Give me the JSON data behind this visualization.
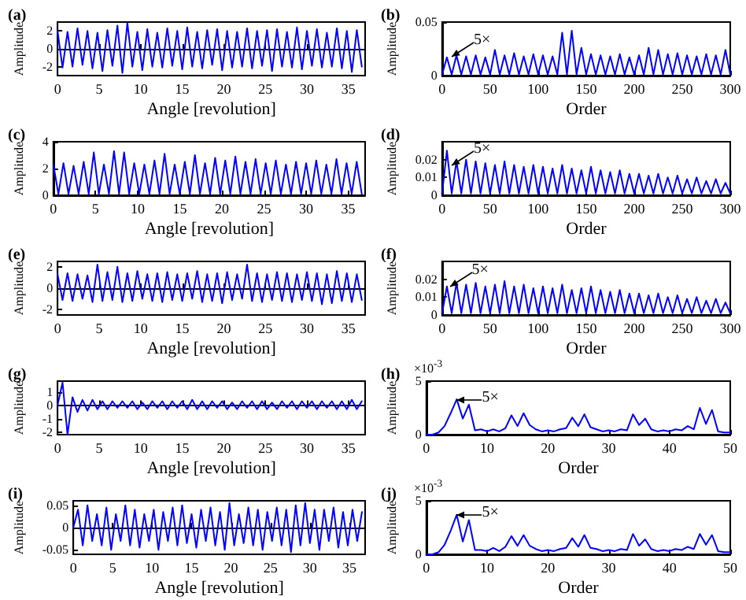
{
  "chart_data": [
    {
      "type": "line",
      "title": "(a)",
      "xlabel": "Angle [revolution]",
      "ylabel": "Amplitude",
      "color": "#0000ff",
      "xlim": [
        0,
        37
      ],
      "xticks": [
        0,
        5,
        10,
        15,
        20,
        25,
        30,
        35
      ],
      "ylim": [
        -3,
        3
      ],
      "yticks": [
        -2,
        0,
        2
      ],
      "x": [
        0,
        0.6,
        1.2,
        1.8,
        2.4,
        3,
        3.6,
        4.2,
        4.8,
        5.4,
        6,
        6.6,
        7.2,
        7.8,
        8.4,
        9,
        9.6,
        10.2,
        10.8,
        11.4,
        12,
        12.6,
        13.2,
        13.8,
        14.4,
        15,
        15.6,
        16.2,
        16.8,
        17.4,
        18,
        18.6,
        19.2,
        19.8,
        20.4,
        21,
        21.6,
        22.2,
        22.8,
        23.4,
        24,
        24.6,
        25.2,
        25.8,
        26.4,
        27,
        27.6,
        28.2,
        28.8,
        29.4,
        30,
        30.6,
        31.2,
        31.8,
        32.4,
        33,
        33.6,
        34.2,
        34.8,
        35.4,
        36,
        36.6
      ],
      "values": [
        2.0,
        -2.1,
        1.9,
        -2.0,
        2.3,
        -1.8,
        2.0,
        -2.2,
        1.8,
        -2.5,
        2.1,
        -1.9,
        2.6,
        -2.7,
        2.9,
        -2.0,
        1.9,
        -2.4,
        2.2,
        -2.0,
        1.8,
        -2.1,
        2.3,
        -1.9,
        2.0,
        -2.3,
        2.4,
        -2.0,
        1.9,
        -2.2,
        2.1,
        -1.8,
        2.2,
        -2.4,
        2.0,
        -2.1,
        1.9,
        -2.0,
        2.3,
        -2.2,
        2.0,
        -1.9,
        2.1,
        -2.5,
        2.2,
        -2.0,
        1.9,
        -2.1,
        2.4,
        -2.3,
        2.0,
        -1.9,
        2.2,
        -2.1,
        1.8,
        -2.0,
        2.3,
        -2.2,
        2.0,
        -2.6,
        2.1,
        -2.0
      ]
    },
    {
      "type": "line",
      "title": "(b)",
      "xlabel": "Order",
      "ylabel": "Amplitude",
      "color": "#0000ff",
      "xlim": [
        0,
        300
      ],
      "xticks": [
        0,
        50,
        100,
        150,
        200,
        250,
        300
      ],
      "ylim": [
        0,
        0.05
      ],
      "yticks": [
        0,
        0.05
      ],
      "annotations": [
        {
          "text": "5×",
          "x": 10,
          "y": 0.017
        }
      ],
      "x": [
        0,
        5,
        10,
        15,
        20,
        25,
        30,
        35,
        40,
        45,
        50,
        55,
        60,
        65,
        70,
        75,
        80,
        85,
        90,
        95,
        100,
        105,
        110,
        115,
        120,
        125,
        130,
        135,
        140,
        145,
        150,
        155,
        160,
        165,
        170,
        175,
        180,
        185,
        190,
        195,
        200,
        205,
        210,
        215,
        220,
        225,
        230,
        235,
        240,
        245,
        250,
        255,
        260,
        265,
        270,
        275,
        280,
        285,
        290,
        295,
        300
      ],
      "values": [
        0.001,
        0.017,
        0.001,
        0.019,
        0.001,
        0.018,
        0.001,
        0.019,
        0.001,
        0.017,
        0.001,
        0.024,
        0.001,
        0.019,
        0.001,
        0.021,
        0.001,
        0.018,
        0.001,
        0.02,
        0.001,
        0.019,
        0.001,
        0.018,
        0.001,
        0.04,
        0.001,
        0.042,
        0.001,
        0.026,
        0.001,
        0.02,
        0.001,
        0.019,
        0.001,
        0.018,
        0.001,
        0.02,
        0.001,
        0.017,
        0.001,
        0.019,
        0.001,
        0.026,
        0.001,
        0.024,
        0.001,
        0.02,
        0.001,
        0.021,
        0.001,
        0.019,
        0.001,
        0.018,
        0.001,
        0.02,
        0.001,
        0.019,
        0.001,
        0.024,
        0.001
      ]
    },
    {
      "type": "line",
      "title": "(c)",
      "xlabel": "Angle [revolution]",
      "ylabel": "Amplitude",
      "color": "#0000ff",
      "xlim": [
        0,
        37
      ],
      "xticks": [
        0,
        5,
        10,
        15,
        20,
        25,
        30,
        35
      ],
      "ylim": [
        0,
        4
      ],
      "yticks": [
        0,
        2,
        4
      ],
      "x": [
        0,
        0.6,
        1.2,
        1.8,
        2.4,
        3,
        3.6,
        4.2,
        4.8,
        5.4,
        6,
        6.6,
        7.2,
        7.8,
        8.4,
        9,
        9.6,
        10.2,
        10.8,
        11.4,
        12,
        12.6,
        13.2,
        13.8,
        14.4,
        15,
        15.6,
        16.2,
        16.8,
        17.4,
        18,
        18.6,
        19.2,
        19.8,
        20.4,
        21,
        21.6,
        22.2,
        22.8,
        23.4,
        24,
        24.6,
        25.2,
        25.8,
        26.4,
        27,
        27.6,
        28.2,
        28.8,
        29.4,
        30,
        30.6,
        31.2,
        31.8,
        32.4,
        33,
        33.6,
        34.2,
        34.8,
        35.4,
        36,
        36.6
      ],
      "values": [
        2.3,
        0.1,
        2.4,
        0.1,
        2.2,
        0.1,
        2.5,
        0.1,
        3.2,
        0.1,
        2.3,
        0.1,
        3.3,
        0.1,
        3.2,
        0.1,
        2.4,
        0.1,
        2.3,
        0.1,
        2.6,
        0.1,
        3.1,
        0.1,
        2.3,
        0.1,
        2.5,
        0.1,
        3.0,
        0.1,
        2.4,
        0.1,
        2.8,
        0.1,
        2.6,
        0.1,
        2.9,
        0.1,
        2.5,
        0.1,
        2.7,
        0.1,
        2.4,
        0.1,
        2.6,
        0.1,
        2.3,
        0.1,
        2.5,
        0.1,
        2.4,
        0.1,
        2.6,
        0.1,
        2.3,
        0.1,
        2.7,
        0.1,
        2.4,
        0.1,
        2.5,
        0.1
      ]
    },
    {
      "type": "line",
      "title": "(d)",
      "xlabel": "Order",
      "ylabel": "Amplitude",
      "color": "#0000ff",
      "xlim": [
        0,
        300
      ],
      "xticks": [
        0,
        50,
        100,
        150,
        200,
        250,
        300
      ],
      "ylim": [
        0,
        0.03
      ],
      "yticks": [
        0,
        0.01,
        0.02
      ],
      "annotations": [
        {
          "text": "5×",
          "x": 10,
          "y": 0.017
        }
      ],
      "x": [
        0,
        5,
        10,
        15,
        20,
        25,
        30,
        35,
        40,
        45,
        50,
        55,
        60,
        65,
        70,
        75,
        80,
        85,
        90,
        95,
        100,
        105,
        110,
        115,
        120,
        125,
        130,
        135,
        140,
        145,
        150,
        155,
        160,
        165,
        170,
        175,
        180,
        185,
        190,
        195,
        200,
        205,
        210,
        215,
        220,
        225,
        230,
        235,
        240,
        245,
        250,
        255,
        260,
        265,
        270,
        275,
        280,
        285,
        290,
        295,
        300
      ],
      "values": [
        0.001,
        0.025,
        0.001,
        0.019,
        0.001,
        0.02,
        0.001,
        0.019,
        0.001,
        0.018,
        0.001,
        0.017,
        0.001,
        0.019,
        0.001,
        0.017,
        0.001,
        0.016,
        0.001,
        0.017,
        0.001,
        0.016,
        0.001,
        0.015,
        0.001,
        0.017,
        0.001,
        0.015,
        0.001,
        0.014,
        0.001,
        0.016,
        0.001,
        0.014,
        0.001,
        0.013,
        0.001,
        0.014,
        0.001,
        0.012,
        0.001,
        0.012,
        0.001,
        0.011,
        0.001,
        0.012,
        0.001,
        0.01,
        0.001,
        0.011,
        0.001,
        0.009,
        0.001,
        0.01,
        0.001,
        0.008,
        0.001,
        0.009,
        0.001,
        0.007,
        0.001
      ]
    },
    {
      "type": "line",
      "title": "(e)",
      "xlabel": "Angle [revolution]",
      "ylabel": "Amplitude",
      "color": "#0000ff",
      "xlim": [
        0,
        37
      ],
      "xticks": [
        0,
        5,
        10,
        15,
        20,
        25,
        30,
        35
      ],
      "ylim": [
        -2.5,
        2.5
      ],
      "yticks": [
        -2,
        0,
        2
      ],
      "x": [
        0,
        0.6,
        1.2,
        1.8,
        2.4,
        3,
        3.6,
        4.2,
        4.8,
        5.4,
        6,
        6.6,
        7.2,
        7.8,
        8.4,
        9,
        9.6,
        10.2,
        10.8,
        11.4,
        12,
        12.6,
        13.2,
        13.8,
        14.4,
        15,
        15.6,
        16.2,
        16.8,
        17.4,
        18,
        18.6,
        19.2,
        19.8,
        20.4,
        21,
        21.6,
        22.2,
        22.8,
        23.4,
        24,
        24.6,
        25.2,
        25.8,
        26.4,
        27,
        27.6,
        28.2,
        28.8,
        29.4,
        30,
        30.6,
        31.2,
        31.8,
        32.4,
        33,
        33.6,
        34.2,
        34.8,
        35.4,
        36,
        36.6
      ],
      "values": [
        1.3,
        -1.1,
        1.4,
        -1.2,
        1.3,
        -1.0,
        1.2,
        -1.3,
        2.2,
        -1.2,
        1.5,
        -1.1,
        2.0,
        -1.3,
        1.4,
        -1.2,
        1.6,
        -1.0,
        1.3,
        -1.2,
        1.4,
        -1.3,
        1.5,
        -1.1,
        1.3,
        -1.2,
        1.4,
        -1.0,
        1.6,
        -1.3,
        1.3,
        -1.2,
        1.4,
        -1.4,
        1.5,
        -1.1,
        1.3,
        -1.0,
        2.2,
        -1.2,
        1.4,
        -1.3,
        1.3,
        -1.1,
        1.5,
        -1.2,
        1.4,
        -1.3,
        1.3,
        -1.1,
        1.5,
        -1.2,
        1.4,
        -1.5,
        1.3,
        -1.4,
        1.6,
        -1.2,
        1.4,
        -1.3,
        1.3,
        -1.1
      ]
    },
    {
      "type": "line",
      "title": "(f)",
      "xlabel": "Order",
      "ylabel": "Amplitude",
      "color": "#0000ff",
      "xlim": [
        0,
        300
      ],
      "xticks": [
        0,
        50,
        100,
        150,
        200,
        250,
        300
      ],
      "ylim": [
        0,
        0.03
      ],
      "yticks": [
        0,
        0.01,
        0.02
      ],
      "annotations": [
        {
          "text": "5×",
          "x": 8,
          "y": 0.016
        }
      ],
      "x": [
        0,
        5,
        10,
        15,
        20,
        25,
        30,
        35,
        40,
        45,
        50,
        55,
        60,
        65,
        70,
        75,
        80,
        85,
        90,
        95,
        100,
        105,
        110,
        115,
        120,
        125,
        130,
        135,
        140,
        145,
        150,
        155,
        160,
        165,
        170,
        175,
        180,
        185,
        190,
        195,
        200,
        205,
        210,
        215,
        220,
        225,
        230,
        235,
        240,
        245,
        250,
        255,
        260,
        265,
        270,
        275,
        280,
        285,
        290,
        295,
        300
      ],
      "values": [
        0.001,
        0.016,
        0.001,
        0.018,
        0.001,
        0.017,
        0.001,
        0.018,
        0.001,
        0.016,
        0.001,
        0.017,
        0.001,
        0.019,
        0.001,
        0.016,
        0.001,
        0.017,
        0.001,
        0.015,
        0.001,
        0.016,
        0.001,
        0.015,
        0.001,
        0.017,
        0.001,
        0.014,
        0.001,
        0.015,
        0.001,
        0.016,
        0.001,
        0.014,
        0.001,
        0.013,
        0.001,
        0.014,
        0.001,
        0.012,
        0.001,
        0.012,
        0.001,
        0.011,
        0.001,
        0.012,
        0.001,
        0.01,
        0.001,
        0.011,
        0.001,
        0.009,
        0.001,
        0.01,
        0.001,
        0.008,
        0.001,
        0.009,
        0.001,
        0.007,
        0.001
      ]
    },
    {
      "type": "line",
      "title": "(g)",
      "xlabel": "Angle [revolution]",
      "ylabel": "Amplitude",
      "color": "#0000ff",
      "xlim": [
        0,
        37
      ],
      "xticks": [
        0,
        5,
        10,
        15,
        20,
        25,
        30,
        35
      ],
      "ylim": [
        -2.2,
        1.8
      ],
      "yticks": [
        -2,
        -1,
        0,
        1
      ],
      "x": [
        0,
        0.6,
        1.2,
        1.8,
        2.4,
        3,
        3.6,
        4.2,
        4.8,
        5.4,
        6,
        6.6,
        7.2,
        7.8,
        8.4,
        9,
        9.6,
        10.2,
        10.8,
        11.4,
        12,
        12.6,
        13.2,
        13.8,
        14.4,
        15,
        15.6,
        16.2,
        16.8,
        17.4,
        18,
        18.6,
        19.2,
        19.8,
        20.4,
        21,
        21.6,
        22.2,
        22.8,
        23.4,
        24,
        24.6,
        25.2,
        25.8,
        26.4,
        27,
        27.6,
        28.2,
        28.8,
        29.4,
        30,
        30.6,
        31.2,
        31.8,
        32.4,
        33,
        33.6,
        34.2,
        34.8,
        35.4,
        36,
        36.6
      ],
      "values": [
        0,
        1.7,
        -2.2,
        0.6,
        -0.5,
        0.4,
        -0.4,
        0.4,
        -0.3,
        0.3,
        -0.3,
        0.3,
        -0.2,
        0.3,
        -0.2,
        0.3,
        -0.3,
        0.2,
        -0.3,
        0.3,
        -0.2,
        0.3,
        -0.3,
        0.3,
        -0.2,
        0.3,
        -0.3,
        0.4,
        -0.3,
        0.3,
        -0.3,
        0.3,
        -0.2,
        0.3,
        -0.3,
        0.2,
        -0.3,
        0.3,
        -0.2,
        0.3,
        -0.3,
        0.3,
        -0.3,
        0.2,
        -0.3,
        0.3,
        -0.2,
        0.3,
        -0.3,
        0.3,
        -0.2,
        0.3,
        -0.3,
        0.3,
        -0.2,
        0.3,
        -0.3,
        0.3,
        -0.3,
        0.4,
        -0.3,
        0.3
      ]
    },
    {
      "type": "line",
      "title": "(h)",
      "xlabel": "Order",
      "ylabel": "Amplitude",
      "color": "#0000ff",
      "xlim": [
        0,
        50
      ],
      "xticks": [
        0,
        10,
        20,
        30,
        40,
        50
      ],
      "ylim": [
        0,
        5
      ],
      "yticks": [
        0,
        5
      ],
      "annotations": [
        "×10$^{-3}$",
        {
          "text": "5×",
          "x": 5,
          "y": 3.3
        }
      ],
      "x": [
        0,
        1,
        2,
        3,
        4,
        5,
        6,
        7,
        8,
        9,
        10,
        11,
        12,
        13,
        14,
        15,
        16,
        17,
        18,
        19,
        20,
        21,
        22,
        23,
        24,
        25,
        26,
        27,
        28,
        29,
        30,
        31,
        32,
        33,
        34,
        35,
        36,
        37,
        38,
        39,
        40,
        41,
        42,
        43,
        44,
        45,
        46,
        47,
        48,
        49,
        50
      ],
      "values": [
        0,
        0,
        0.2,
        0.8,
        2,
        3.3,
        1.5,
        2.8,
        0.4,
        0.5,
        0.3,
        0.5,
        0.3,
        0.6,
        1.8,
        0.8,
        2,
        0.9,
        0.5,
        0.3,
        0.4,
        0.3,
        0.5,
        0.6,
        1.6,
        0.8,
        1.9,
        0.7,
        0.5,
        0.3,
        0.4,
        0.3,
        0.5,
        0.4,
        1.9,
        0.9,
        1.5,
        0.5,
        0.3,
        0.4,
        0.3,
        0.5,
        0.4,
        0.8,
        0.5,
        2.5,
        1,
        2.3,
        0.3,
        0.2,
        0.2
      ]
    },
    {
      "type": "line",
      "title": "(i)",
      "xlabel": "Angle [revolution]",
      "ylabel": "Amplitude",
      "color": "#0000ff",
      "xlim": [
        0,
        37
      ],
      "xticks": [
        0,
        5,
        10,
        15,
        20,
        25,
        30,
        35
      ],
      "ylim": [
        -0.06,
        0.06
      ],
      "yticks": [
        -0.05,
        0,
        0.05
      ],
      "x": [
        0,
        0.6,
        1.2,
        1.8,
        2.4,
        3,
        3.6,
        4.2,
        4.8,
        5.4,
        6,
        6.6,
        7.2,
        7.8,
        8.4,
        9,
        9.6,
        10.2,
        10.8,
        11.4,
        12,
        12.6,
        13.2,
        13.8,
        14.4,
        15,
        15.6,
        16.2,
        16.8,
        17.4,
        18,
        18.6,
        19.2,
        19.8,
        20.4,
        21,
        21.6,
        22.2,
        22.8,
        23.4,
        24,
        24.6,
        25.2,
        25.8,
        26.4,
        27,
        27.6,
        28.2,
        28.8,
        29.4,
        30,
        30.6,
        31.2,
        31.8,
        32.4,
        33,
        33.6,
        34.2,
        34.8,
        35.4,
        36,
        36.6
      ],
      "values": [
        0,
        0.04,
        -0.04,
        0.05,
        -0.03,
        0.03,
        -0.04,
        0.045,
        -0.05,
        0.03,
        -0.03,
        0.05,
        -0.04,
        0.04,
        -0.045,
        0.03,
        -0.03,
        0.04,
        -0.05,
        0.035,
        -0.03,
        0.045,
        -0.04,
        0.05,
        -0.035,
        0.03,
        -0.045,
        0.04,
        -0.03,
        0.045,
        -0.04,
        0.035,
        -0.05,
        0.055,
        -0.04,
        0.03,
        -0.035,
        0.045,
        -0.04,
        0.04,
        -0.05,
        0.035,
        -0.03,
        0.045,
        -0.04,
        0.04,
        -0.055,
        0.05,
        -0.04,
        0.055,
        -0.035,
        0.04,
        -0.05,
        0.04,
        -0.03,
        0.045,
        -0.045,
        0.035,
        -0.04,
        0.04,
        -0.03,
        0.035
      ]
    },
    {
      "type": "line",
      "title": "(j)",
      "xlabel": "Order",
      "ylabel": "Amplitude",
      "color": "#0000ff",
      "xlim": [
        0,
        50
      ],
      "xticks": [
        0,
        10,
        20,
        30,
        40,
        50
      ],
      "ylim": [
        0,
        5
      ],
      "yticks": [
        0,
        5
      ],
      "annotations": [
        "×10$^{-3}$",
        {
          "text": "5×",
          "x": 5,
          "y": 3.7
        }
      ],
      "x": [
        0,
        1,
        2,
        3,
        4,
        5,
        6,
        7,
        8,
        9,
        10,
        11,
        12,
        13,
        14,
        15,
        16,
        17,
        18,
        19,
        20,
        21,
        22,
        23,
        24,
        25,
        26,
        27,
        28,
        29,
        30,
        31,
        32,
        33,
        34,
        35,
        36,
        37,
        38,
        39,
        40,
        41,
        42,
        43,
        44,
        45,
        46,
        47,
        48,
        49,
        50
      ],
      "values": [
        0,
        0,
        0.2,
        0.9,
        2.2,
        3.7,
        1.2,
        3.2,
        0.4,
        0.4,
        0.3,
        0.6,
        0.3,
        0.7,
        1.7,
        0.8,
        1.8,
        0.8,
        0.5,
        0.3,
        0.4,
        0.3,
        0.5,
        0.6,
        1.5,
        0.7,
        1.8,
        0.6,
        0.5,
        0.3,
        0.4,
        0.3,
        0.5,
        0.4,
        1.9,
        0.8,
        1.4,
        0.5,
        0.3,
        0.4,
        0.3,
        0.5,
        0.4,
        0.7,
        0.5,
        1.9,
        0.9,
        1.8,
        0.3,
        0.2,
        0.2
      ]
    }
  ]
}
